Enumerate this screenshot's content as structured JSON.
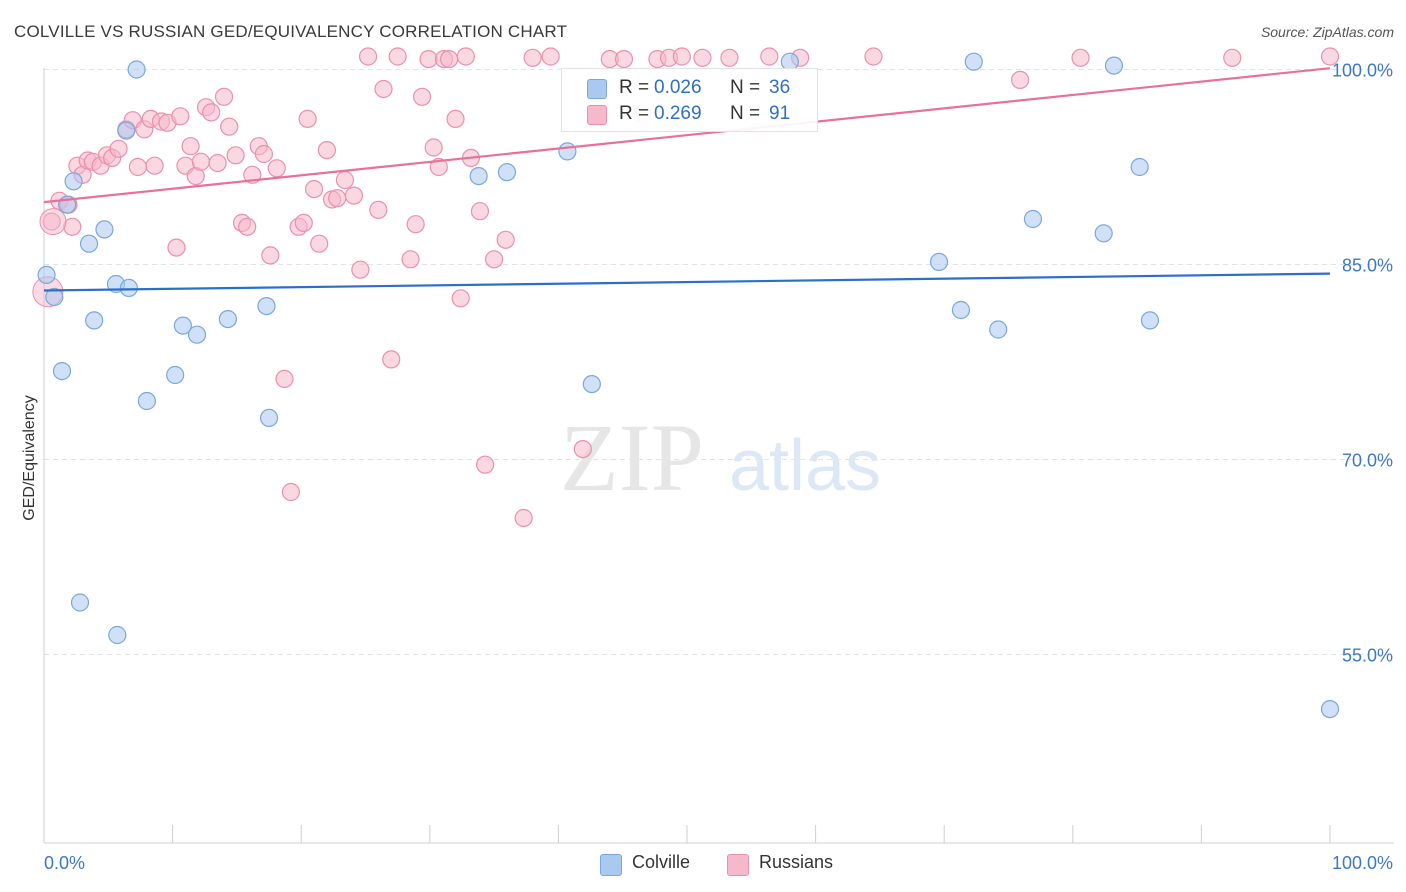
{
  "title": "COLVILLE VS RUSSIAN GED/EQUIVALENCY CORRELATION CHART",
  "source": "Source: ZipAtlas.com",
  "watermark": {
    "zip": "ZIP",
    "atlas": "atlas"
  },
  "legend_top": {
    "rows": [
      {
        "r_label": "R =",
        "r_value": "0.026",
        "n_label": "N =",
        "n_value": "36",
        "color": "#a9c9f1"
      },
      {
        "r_label": "R =",
        "r_value": "0.269",
        "n_label": "N =",
        "n_value": "91",
        "color": "#f6b8cb"
      }
    ]
  },
  "legend_bottom": [
    {
      "label": "Colville",
      "color": "#a9c9f1"
    },
    {
      "label": "Russians",
      "color": "#f6b8cb"
    }
  ],
  "chart_data": {
    "type": "scatter",
    "title": "COLVILLE VS RUSSIAN GED/EQUIVALENCY CORRELATION CHART",
    "xlabel": "",
    "ylabel": "GED/Equivalency",
    "xlim": [
      0,
      100
    ],
    "ylim": [
      40.5,
      101.5
    ],
    "x_tick_labels": [
      "0.0%",
      "100.0%"
    ],
    "y_ticks": [
      55,
      70,
      85,
      100
    ],
    "y_tick_labels": [
      "55.0%",
      "70.0%",
      "85.0%",
      "100.0%"
    ],
    "grid": true,
    "series": [
      {
        "name": "Colville",
        "marker_fill": "#a9c9f1",
        "marker_stroke": "#7aa7dc",
        "line_color": "#2b6fc9",
        "trend": {
          "x": [
            0,
            100
          ],
          "y": [
            83.0,
            84.3
          ]
        },
        "points": [
          [
            0.2,
            84.2
          ],
          [
            0.8,
            82.5
          ],
          [
            1.4,
            76.8
          ],
          [
            1.8,
            89.6
          ],
          [
            2.3,
            91.4
          ],
          [
            2.8,
            59.0
          ],
          [
            3.5,
            86.6
          ],
          [
            3.9,
            80.7
          ],
          [
            4.7,
            87.7
          ],
          [
            5.6,
            83.5
          ],
          [
            5.7,
            56.5
          ],
          [
            6.6,
            83.2
          ],
          [
            6.4,
            95.3
          ],
          [
            7.2,
            100.0
          ],
          [
            8.0,
            74.5
          ],
          [
            10.2,
            76.5
          ],
          [
            10.8,
            80.3
          ],
          [
            11.9,
            79.6
          ],
          [
            14.3,
            80.8
          ],
          [
            17.3,
            81.8
          ],
          [
            17.5,
            73.2
          ],
          [
            33.8,
            91.8
          ],
          [
            36.0,
            92.1
          ],
          [
            40.7,
            93.7
          ],
          [
            42.6,
            75.8
          ],
          [
            69.6,
            85.2
          ],
          [
            71.3,
            81.5
          ],
          [
            72.3,
            100.6
          ],
          [
            74.2,
            80.0
          ],
          [
            76.9,
            88.5
          ],
          [
            82.4,
            87.4
          ],
          [
            83.2,
            100.3
          ],
          [
            85.2,
            92.5
          ],
          [
            86.0,
            80.7
          ],
          [
            100.0,
            50.8
          ],
          [
            58.0,
            100.6
          ]
        ]
      },
      {
        "name": "Russians",
        "marker_fill": "#f6b8cb",
        "marker_stroke": "#ea8fae",
        "line_color": "#e8709a",
        "trend": {
          "x": [
            0,
            100
          ],
          "y": [
            89.8,
            100.1
          ]
        },
        "points": [
          [
            0.6,
            88.3
          ],
          [
            1.2,
            89.9
          ],
          [
            1.9,
            89.6
          ],
          [
            2.2,
            87.9
          ],
          [
            2.6,
            92.6
          ],
          [
            3.0,
            91.9
          ],
          [
            3.4,
            93.0
          ],
          [
            3.8,
            92.9
          ],
          [
            4.4,
            92.6
          ],
          [
            4.9,
            93.4
          ],
          [
            5.3,
            93.2
          ],
          [
            5.8,
            93.9
          ],
          [
            6.4,
            95.4
          ],
          [
            6.9,
            96.1
          ],
          [
            7.3,
            92.5
          ],
          [
            7.8,
            95.4
          ],
          [
            8.3,
            96.2
          ],
          [
            8.6,
            92.6
          ],
          [
            9.1,
            96.0
          ],
          [
            9.6,
            95.9
          ],
          [
            10.3,
            86.3
          ],
          [
            10.6,
            96.4
          ],
          [
            11.0,
            92.6
          ],
          [
            11.4,
            94.1
          ],
          [
            11.8,
            91.8
          ],
          [
            12.2,
            92.9
          ],
          [
            12.6,
            97.1
          ],
          [
            13.0,
            96.7
          ],
          [
            13.5,
            92.8
          ],
          [
            14.0,
            97.9
          ],
          [
            14.4,
            95.6
          ],
          [
            14.9,
            93.4
          ],
          [
            15.4,
            88.2
          ],
          [
            15.8,
            87.9
          ],
          [
            16.2,
            91.9
          ],
          [
            16.7,
            94.1
          ],
          [
            17.1,
            93.5
          ],
          [
            17.6,
            85.7
          ],
          [
            18.1,
            92.4
          ],
          [
            18.7,
            76.2
          ],
          [
            19.2,
            67.5
          ],
          [
            19.8,
            87.9
          ],
          [
            20.2,
            88.2
          ],
          [
            20.5,
            96.2
          ],
          [
            21.0,
            90.8
          ],
          [
            21.4,
            86.6
          ],
          [
            22.0,
            93.8
          ],
          [
            22.4,
            90.0
          ],
          [
            22.8,
            90.1
          ],
          [
            23.4,
            91.5
          ],
          [
            24.1,
            90.3
          ],
          [
            24.6,
            84.6
          ],
          [
            25.2,
            101.0
          ],
          [
            26.0,
            89.2
          ],
          [
            26.4,
            98.5
          ],
          [
            27.0,
            77.7
          ],
          [
            27.5,
            101.0
          ],
          [
            28.5,
            85.4
          ],
          [
            28.9,
            88.1
          ],
          [
            29.4,
            97.9
          ],
          [
            29.9,
            100.8
          ],
          [
            30.3,
            94.0
          ],
          [
            30.7,
            92.5
          ],
          [
            31.1,
            100.8
          ],
          [
            31.5,
            100.8
          ],
          [
            32.0,
            96.2
          ],
          [
            32.4,
            82.4
          ],
          [
            32.8,
            101.0
          ],
          [
            33.2,
            93.2
          ],
          [
            33.9,
            89.1
          ],
          [
            34.3,
            69.6
          ],
          [
            35.0,
            85.4
          ],
          [
            35.9,
            86.9
          ],
          [
            37.3,
            65.5
          ],
          [
            38.0,
            100.9
          ],
          [
            39.4,
            101.0
          ],
          [
            41.9,
            70.8
          ],
          [
            44.0,
            100.8
          ],
          [
            45.1,
            100.8
          ],
          [
            46.5,
            96.6
          ],
          [
            47.7,
            100.8
          ],
          [
            48.6,
            100.9
          ],
          [
            49.6,
            101.0
          ],
          [
            51.2,
            100.9
          ],
          [
            53.3,
            100.9
          ],
          [
            56.4,
            101.0
          ],
          [
            58.8,
            100.9
          ],
          [
            64.5,
            101.0
          ],
          [
            75.9,
            99.2
          ],
          [
            80.6,
            100.9
          ],
          [
            92.4,
            100.9
          ],
          [
            100.0,
            101.0
          ]
        ]
      }
    ]
  }
}
